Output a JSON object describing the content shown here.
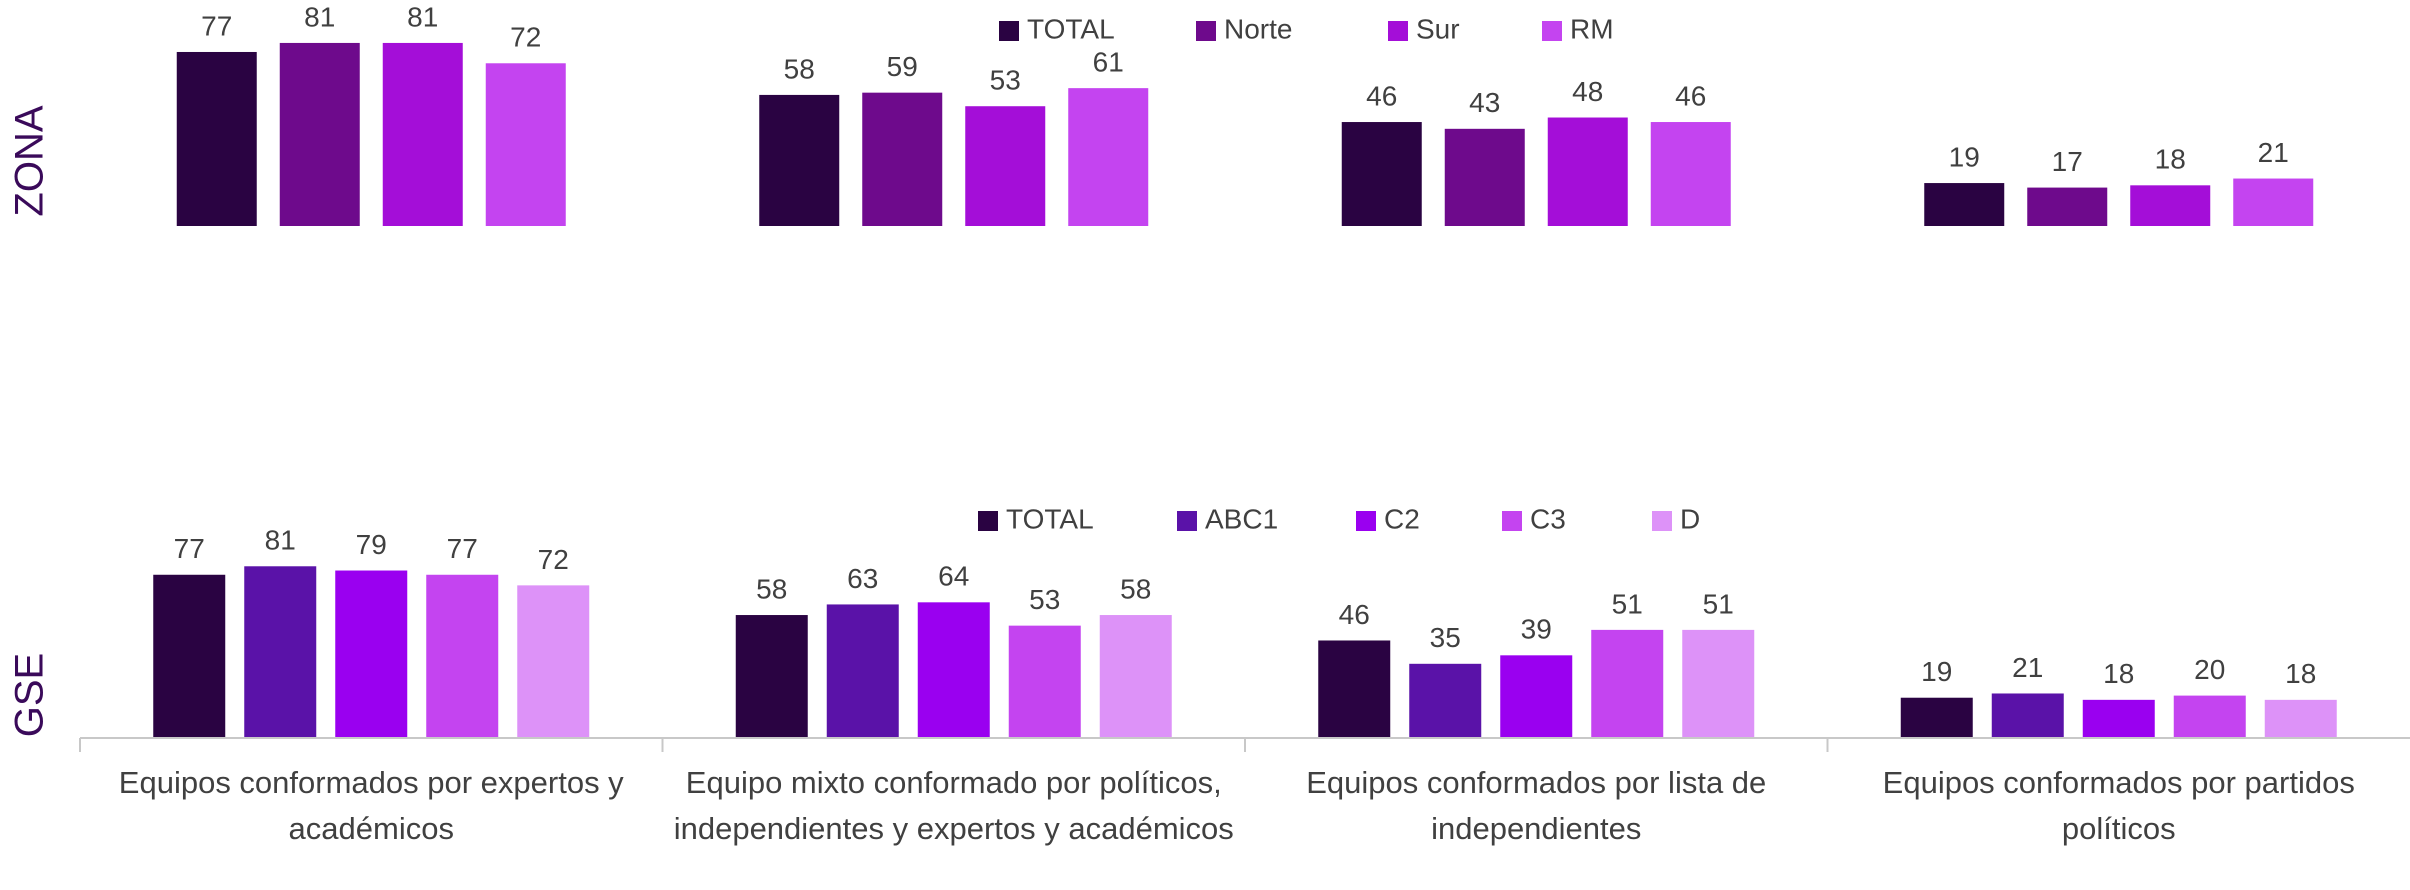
{
  "chart_data": [
    {
      "type": "bar",
      "y_label": "ZONA",
      "series": [
        {
          "name": "TOTAL",
          "color": "#2a0342",
          "values": [
            77,
            58,
            46,
            19
          ]
        },
        {
          "name": "Norte",
          "color": "#6e0a8c",
          "values": [
            81,
            59,
            43,
            17
          ]
        },
        {
          "name": "Sur",
          "color": "#a40ed8",
          "values": [
            81,
            53,
            48,
            18
          ]
        },
        {
          "name": "RM",
          "color": "#c444f0",
          "values": [
            72,
            61,
            46,
            21
          ]
        }
      ]
    },
    {
      "type": "bar",
      "y_label": "GSE",
      "categories": [
        "Equipos conformados por expertos y académicos",
        "Equipo mixto conformado por políticos, independientes y expertos y académicos",
        "Equipos conformados por lista de independientes",
        "Equipos conformados por partidos políticos"
      ],
      "series": [
        {
          "name": "TOTAL",
          "color": "#2a0342",
          "values": [
            77,
            58,
            46,
            19
          ]
        },
        {
          "name": "ABC1",
          "color": "#5a12a8",
          "values": [
            81,
            63,
            35,
            21
          ]
        },
        {
          "name": "C2",
          "color": "#9a00f0",
          "values": [
            79,
            64,
            39,
            18
          ]
        },
        {
          "name": "C3",
          "color": "#c444f0",
          "values": [
            77,
            53,
            51,
            20
          ]
        },
        {
          "name": "D",
          "color": "#dd92f8",
          "values": [
            72,
            58,
            51,
            18
          ]
        }
      ]
    }
  ]
}
